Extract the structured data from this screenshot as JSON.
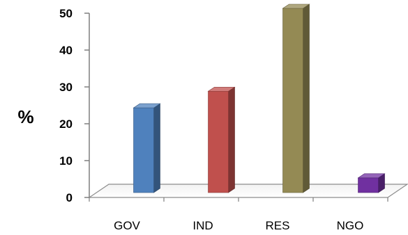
{
  "chart_data": {
    "type": "bar",
    "categories": [
      "GOV",
      "IND",
      "RES",
      "NGO"
    ],
    "values": [
      23,
      27.5,
      50,
      4
    ],
    "title": "",
    "xlabel": "",
    "ylabel": "%",
    "ylim": [
      0,
      50
    ],
    "yticks": [
      "0",
      "10",
      "20",
      "30",
      "40",
      "50"
    ],
    "colors": {
      "GOV": "#4F81BD",
      "IND": "#C0504D",
      "RES": "#948A54",
      "NGO": "#7030A0"
    },
    "grid": false,
    "legend": "none"
  }
}
